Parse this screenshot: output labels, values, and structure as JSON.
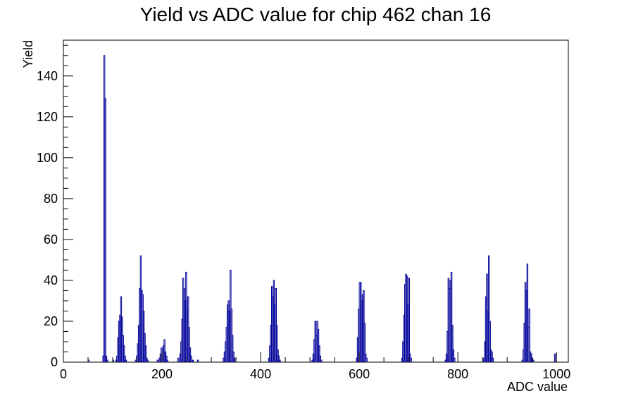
{
  "chart_data": {
    "type": "bar",
    "title": "Yield vs ADC value for chip 462 chan 16",
    "xlabel": "ADC value",
    "ylabel": "Yield",
    "xlim": [
      0,
      1024
    ],
    "ylim": [
      0,
      157.5
    ],
    "x_ticks": [
      "0",
      "200",
      "400",
      "600",
      "800",
      "1000"
    ],
    "y_ticks": [
      "0",
      "20",
      "40",
      "60",
      "80",
      "100",
      "120",
      "140"
    ],
    "grid": false,
    "legend": "none",
    "bar_color": "#000099",
    "bin_width": 2,
    "bins": [
      [
        50,
        1
      ],
      [
        80,
        3
      ],
      [
        82,
        150
      ],
      [
        84,
        129
      ],
      [
        86,
        3
      ],
      [
        88,
        1
      ],
      [
        100,
        1
      ],
      [
        106,
        1
      ],
      [
        108,
        3
      ],
      [
        110,
        12
      ],
      [
        112,
        20
      ],
      [
        114,
        23
      ],
      [
        116,
        32
      ],
      [
        118,
        22
      ],
      [
        120,
        13
      ],
      [
        122,
        8
      ],
      [
        124,
        3
      ],
      [
        126,
        1
      ],
      [
        146,
        1
      ],
      [
        148,
        3
      ],
      [
        150,
        9
      ],
      [
        152,
        18
      ],
      [
        154,
        36
      ],
      [
        156,
        52
      ],
      [
        158,
        35
      ],
      [
        160,
        33
      ],
      [
        162,
        25
      ],
      [
        164,
        14
      ],
      [
        166,
        8
      ],
      [
        168,
        2
      ],
      [
        170,
        1
      ],
      [
        190,
        1
      ],
      [
        194,
        2
      ],
      [
        196,
        4
      ],
      [
        198,
        7
      ],
      [
        200,
        6
      ],
      [
        202,
        8
      ],
      [
        204,
        11
      ],
      [
        206,
        5
      ],
      [
        208,
        3
      ],
      [
        210,
        1
      ],
      [
        232,
        2
      ],
      [
        236,
        4
      ],
      [
        238,
        10
      ],
      [
        240,
        21
      ],
      [
        242,
        41
      ],
      [
        244,
        36
      ],
      [
        246,
        30
      ],
      [
        248,
        44
      ],
      [
        250,
        25
      ],
      [
        252,
        32
      ],
      [
        254,
        17
      ],
      [
        256,
        7
      ],
      [
        258,
        3
      ],
      [
        262,
        1
      ],
      [
        272,
        1
      ],
      [
        324,
        2
      ],
      [
        326,
        5
      ],
      [
        328,
        10
      ],
      [
        330,
        17
      ],
      [
        332,
        28
      ],
      [
        334,
        30
      ],
      [
        336,
        25
      ],
      [
        338,
        45
      ],
      [
        340,
        26
      ],
      [
        342,
        13
      ],
      [
        344,
        5
      ],
      [
        346,
        2
      ],
      [
        416,
        2
      ],
      [
        418,
        8
      ],
      [
        420,
        18
      ],
      [
        422,
        37
      ],
      [
        424,
        32
      ],
      [
        426,
        40
      ],
      [
        428,
        28
      ],
      [
        430,
        36
      ],
      [
        432,
        18
      ],
      [
        434,
        6
      ],
      [
        436,
        3
      ],
      [
        438,
        1
      ],
      [
        504,
        1
      ],
      [
        506,
        4
      ],
      [
        508,
        11
      ],
      [
        510,
        20
      ],
      [
        512,
        13
      ],
      [
        514,
        20
      ],
      [
        516,
        16
      ],
      [
        518,
        8
      ],
      [
        520,
        3
      ],
      [
        522,
        1
      ],
      [
        594,
        2
      ],
      [
        596,
        12
      ],
      [
        598,
        26
      ],
      [
        600,
        39
      ],
      [
        602,
        39
      ],
      [
        604,
        30
      ],
      [
        606,
        33
      ],
      [
        608,
        35
      ],
      [
        610,
        19
      ],
      [
        612,
        4
      ],
      [
        614,
        2
      ],
      [
        686,
        2
      ],
      [
        688,
        10
      ],
      [
        690,
        23
      ],
      [
        692,
        38
      ],
      [
        694,
        43
      ],
      [
        696,
        42
      ],
      [
        698,
        28
      ],
      [
        700,
        41
      ],
      [
        702,
        4
      ],
      [
        704,
        2
      ],
      [
        774,
        1
      ],
      [
        776,
        4
      ],
      [
        778,
        15
      ],
      [
        780,
        41
      ],
      [
        782,
        36
      ],
      [
        784,
        40
      ],
      [
        786,
        44
      ],
      [
        788,
        18
      ],
      [
        790,
        6
      ],
      [
        792,
        2
      ],
      [
        852,
        2
      ],
      [
        854,
        10
      ],
      [
        856,
        32
      ],
      [
        858,
        43
      ],
      [
        860,
        25
      ],
      [
        862,
        52
      ],
      [
        864,
        20
      ],
      [
        866,
        6
      ],
      [
        868,
        5
      ],
      [
        870,
        2
      ],
      [
        930,
        1
      ],
      [
        932,
        6
      ],
      [
        934,
        19
      ],
      [
        936,
        39
      ],
      [
        938,
        35
      ],
      [
        940,
        48
      ],
      [
        942,
        17
      ],
      [
        944,
        26
      ],
      [
        946,
        5
      ],
      [
        948,
        4
      ],
      [
        950,
        2
      ],
      [
        952,
        1
      ],
      [
        996,
        4
      ]
    ]
  }
}
